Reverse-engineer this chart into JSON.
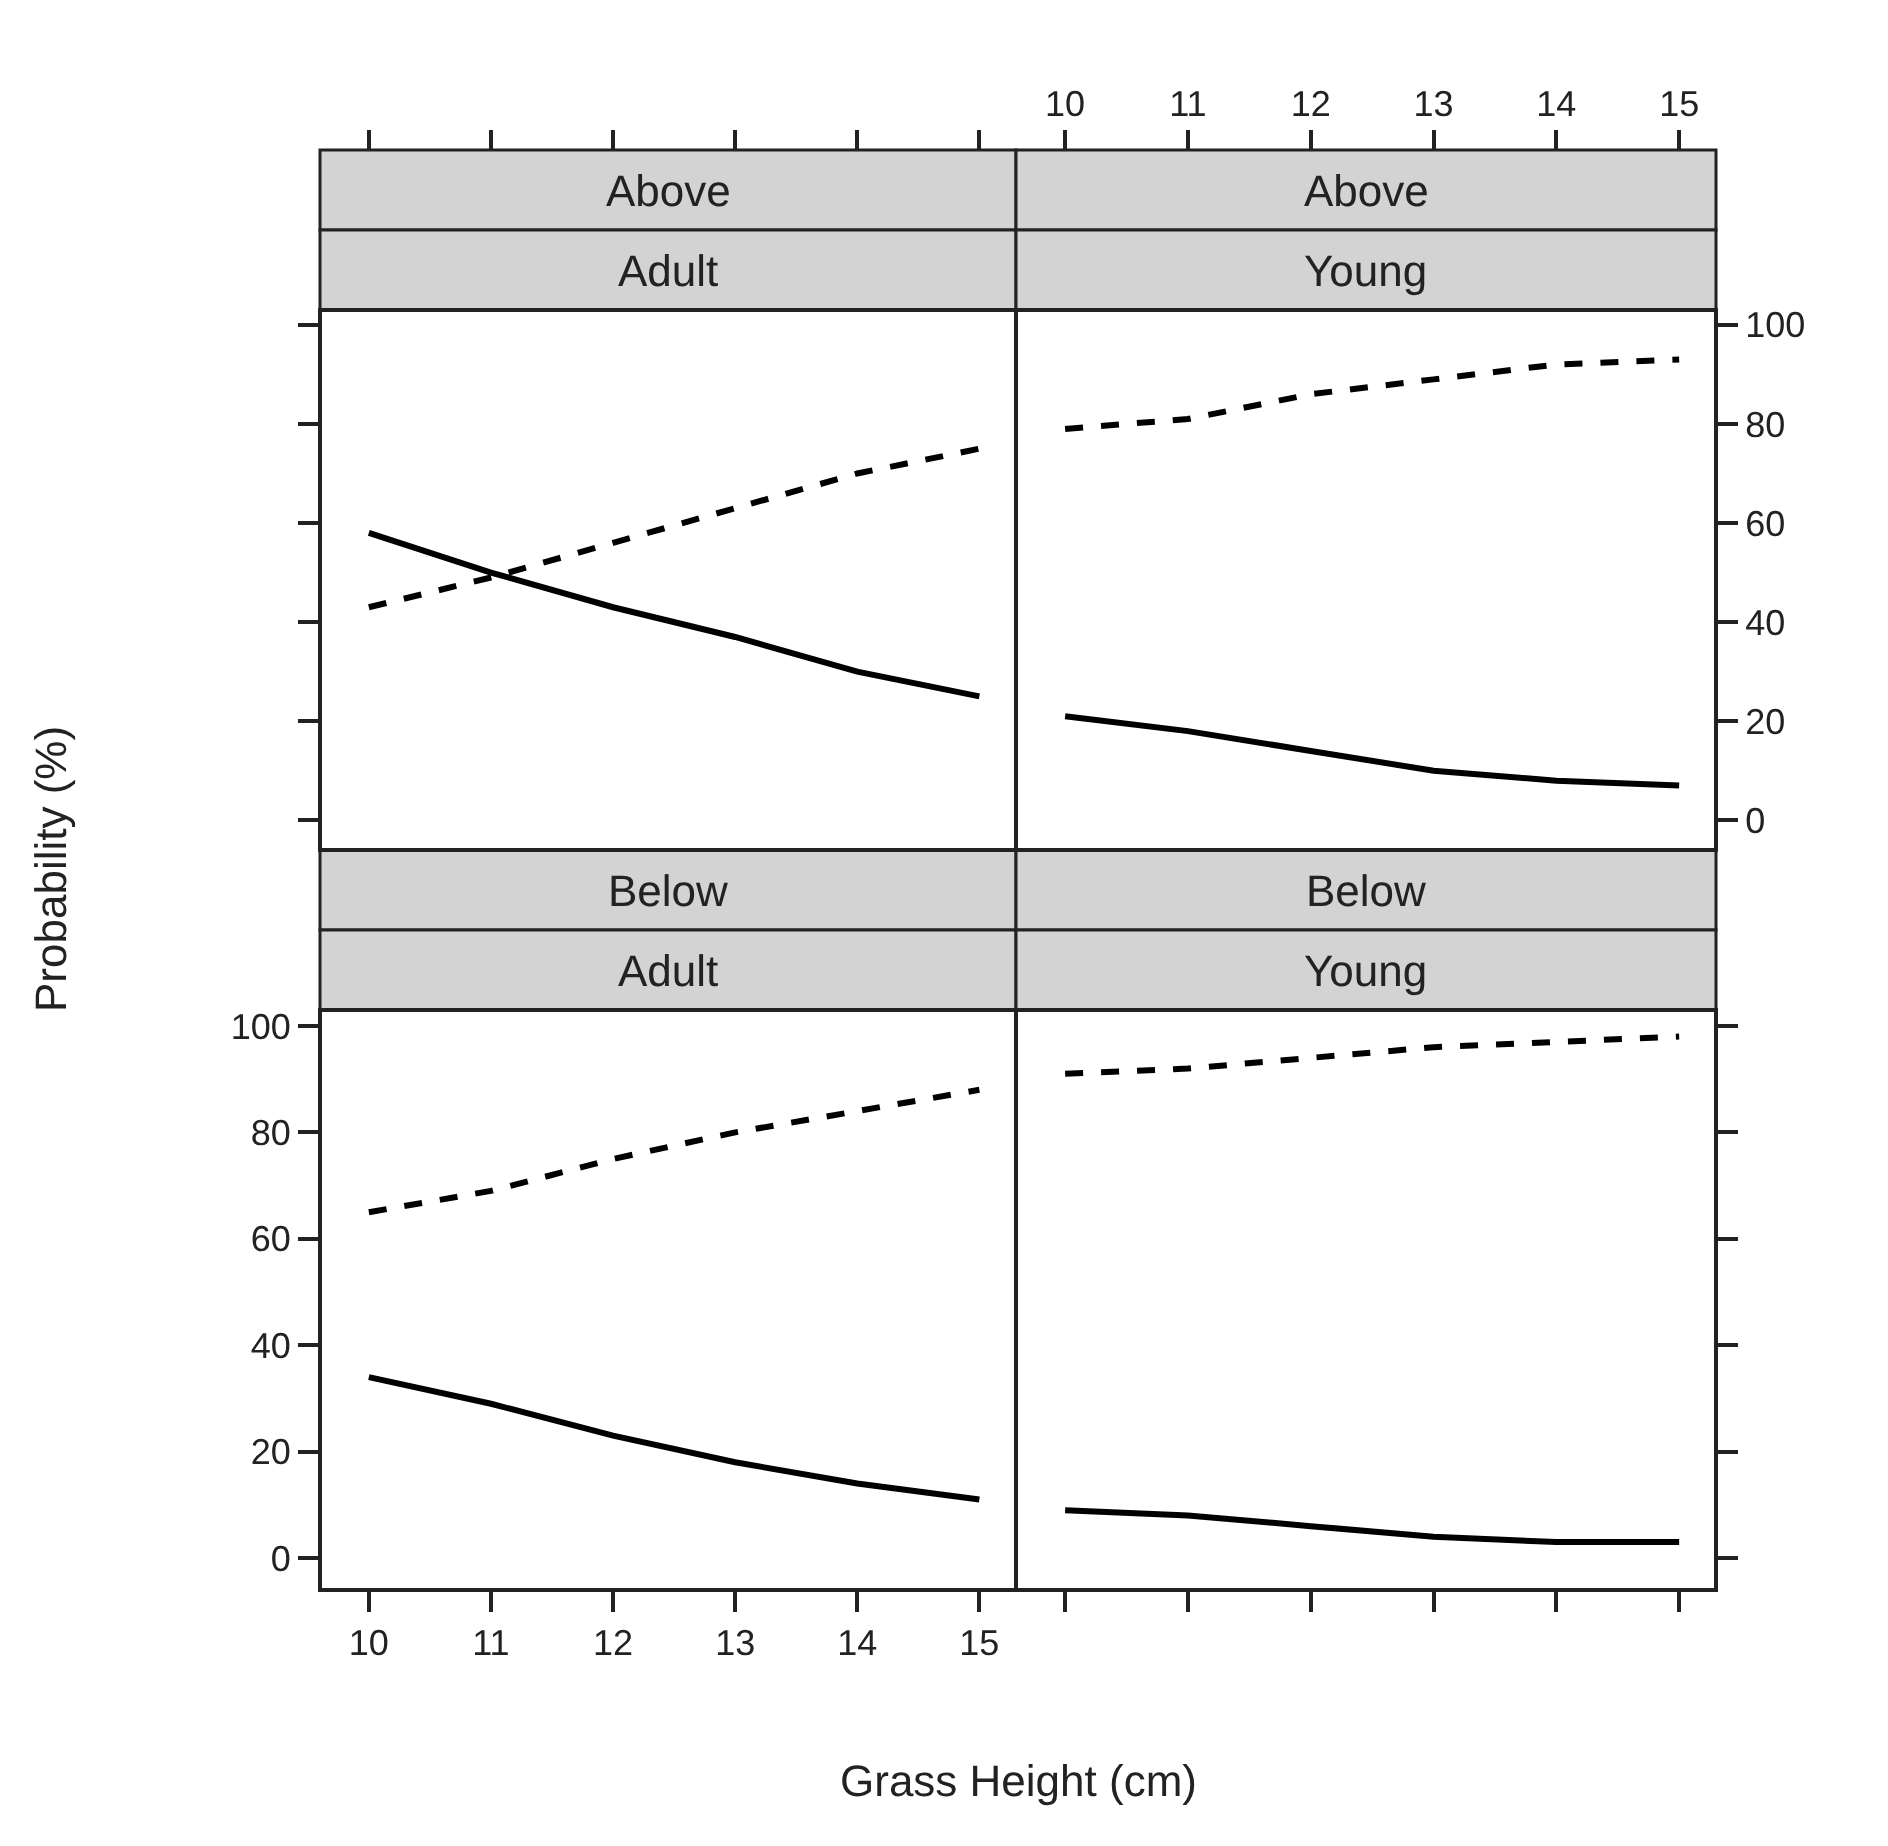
{
  "chart_data": [
    {
      "type": "line",
      "title": "Above",
      "subtitle": "Adult",
      "xlim": [
        9.6,
        15.3
      ],
      "xticks": [
        10,
        11,
        12,
        13,
        14,
        15
      ],
      "ylim": [
        -6,
        103
      ],
      "yticks": [
        0,
        20,
        40,
        60,
        80,
        100
      ],
      "tick_labels": false,
      "series": [
        {
          "color": "#000000",
          "line_style": "solid",
          "x": [
            10,
            11,
            12,
            13,
            14,
            15
          ],
          "values": [
            58,
            50,
            43,
            37,
            30,
            25
          ]
        },
        {
          "color": "#000000",
          "line_style": "dashed",
          "x": [
            10,
            11,
            12,
            13,
            14,
            15
          ],
          "values": [
            43,
            49,
            56,
            63,
            70,
            75
          ]
        }
      ]
    },
    {
      "type": "line",
      "title": "Above",
      "subtitle": "Young",
      "xlim": [
        9.6,
        15.3
      ],
      "xticks": [
        10,
        11,
        12,
        13,
        14,
        15
      ],
      "ylim": [
        -6,
        103
      ],
      "yticks": [
        0,
        20,
        40,
        60,
        80,
        100
      ],
      "series": [
        {
          "color": "#000000",
          "line_style": "solid",
          "x": [
            10,
            11,
            12,
            13,
            14,
            15
          ],
          "values": [
            21,
            18,
            14,
            10,
            8,
            7
          ]
        },
        {
          "color": "#000000",
          "line_style": "dashed",
          "x": [
            10,
            11,
            12,
            13,
            14,
            15
          ],
          "values": [
            79,
            81,
            86,
            89,
            92,
            93
          ]
        }
      ]
    },
    {
      "type": "line",
      "title": "Below",
      "subtitle": "Adult",
      "xlabel": "Grass Height (cm)",
      "ylabel": "Probability (%)",
      "xlim": [
        9.6,
        15.3
      ],
      "xticks": [
        10,
        11,
        12,
        13,
        14,
        15
      ],
      "ylim": [
        -6,
        103
      ],
      "yticks": [
        0,
        20,
        40,
        60,
        80,
        100
      ],
      "series": [
        {
          "color": "#000000",
          "line_style": "solid",
          "x": [
            10,
            11,
            12,
            13,
            14,
            15
          ],
          "values": [
            34,
            29,
            23,
            18,
            14,
            11
          ]
        },
        {
          "color": "#000000",
          "line_style": "dashed",
          "x": [
            10,
            11,
            12,
            13,
            14,
            15
          ],
          "values": [
            65,
            69,
            75,
            80,
            84,
            88
          ]
        }
      ]
    },
    {
      "type": "line",
      "title": "Below",
      "subtitle": "Young",
      "xlim": [
        9.6,
        15.3
      ],
      "xticks": [
        10,
        11,
        12,
        13,
        14,
        15
      ],
      "ylim": [
        -6,
        103
      ],
      "yticks": [
        0,
        20,
        40,
        60,
        80,
        100
      ],
      "tick_labels": false,
      "series": [
        {
          "color": "#000000",
          "line_style": "solid",
          "x": [
            10,
            11,
            12,
            13,
            14,
            15
          ],
          "values": [
            9,
            8,
            6,
            4,
            3,
            3
          ]
        },
        {
          "color": "#000000",
          "line_style": "dashed",
          "x": [
            10,
            11,
            12,
            13,
            14,
            15
          ],
          "values": [
            91,
            92,
            94,
            96,
            97,
            98
          ]
        }
      ]
    }
  ]
}
